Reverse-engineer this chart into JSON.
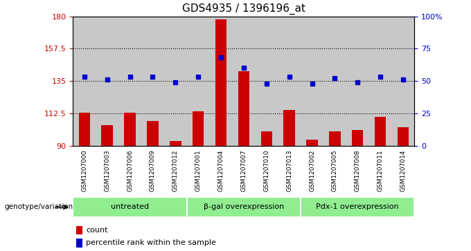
{
  "title": "GDS4935 / 1396196_at",
  "samples": [
    "GSM1207000",
    "GSM1207003",
    "GSM1207006",
    "GSM1207009",
    "GSM1207012",
    "GSM1207001",
    "GSM1207004",
    "GSM1207007",
    "GSM1207010",
    "GSM1207013",
    "GSM1207002",
    "GSM1207005",
    "GSM1207008",
    "GSM1207011",
    "GSM1207014"
  ],
  "bar_values": [
    113,
    104,
    113,
    107,
    93,
    114,
    178,
    142,
    100,
    115,
    94,
    100,
    101,
    110,
    103
  ],
  "dot_values_pct": [
    53,
    51,
    53,
    53,
    49,
    53,
    68,
    60,
    48,
    53,
    48,
    52,
    49,
    53,
    51
  ],
  "groups": [
    {
      "label": "untreated",
      "start": 0,
      "end": 5
    },
    {
      "label": "β-gal overexpression",
      "start": 5,
      "end": 10
    },
    {
      "label": "Pdx-1 overexpression",
      "start": 10,
      "end": 15
    }
  ],
  "y_min": 90,
  "y_max": 180,
  "y_ticks": [
    90,
    112.5,
    135,
    157.5,
    180
  ],
  "y_tick_labels": [
    "90",
    "112.5",
    "135",
    "157.5",
    "180"
  ],
  "right_y_ticks": [
    0,
    25,
    50,
    75,
    100
  ],
  "right_y_tick_labels": [
    "0",
    "25",
    "50",
    "75",
    "100%"
  ],
  "bar_color": "#cc0000",
  "dot_color": "#0000cc",
  "group_bg_color": "#90ee90",
  "sample_bg_color": "#c8c8c8",
  "legend_count_color": "#cc0000",
  "legend_dot_color": "#0000cc",
  "genotype_label": "genotype/variation",
  "legend_count_label": "count",
  "legend_dot_label": "percentile rank within the sample"
}
